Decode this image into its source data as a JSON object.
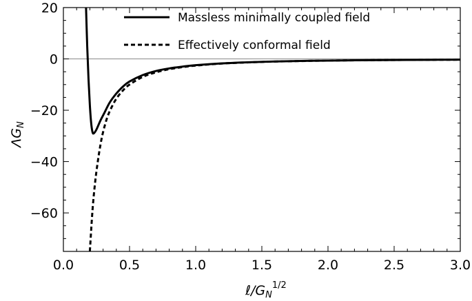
{
  "chart_data": {
    "type": "line",
    "xlabel_main": "ℓ/",
    "xlabel_g": "G",
    "xlabel_sub": "N",
    "xlabel_sup": "1/2",
    "ylabel_main": "ΛG",
    "ylabel_sub": "N",
    "xlim": [
      0,
      3
    ],
    "ylim": [
      -75,
      20
    ],
    "xticks": [
      0.0,
      0.5,
      1.0,
      1.5,
      2.0,
      2.5,
      3.0
    ],
    "xtick_labels": [
      "0.0",
      "0.5",
      "1.0",
      "1.5",
      "2.0",
      "2.5",
      "3.0"
    ],
    "yticks": [
      20,
      0,
      -20,
      -40,
      -60
    ],
    "ytick_labels": [
      "20",
      "0",
      "−20",
      "−40",
      "−60"
    ],
    "zero_line": true,
    "grid": false,
    "legend_position": "top-right",
    "series": [
      {
        "name": "Massless minimally coupled field",
        "style": "solid",
        "color": "#000000",
        "x": [
          0.17,
          0.18,
          0.19,
          0.2,
          0.21,
          0.22,
          0.23,
          0.25,
          0.28,
          0.31,
          0.35,
          0.4,
          0.45,
          0.5,
          0.6,
          0.7,
          0.8,
          0.9,
          1.0,
          1.2,
          1.4,
          1.6,
          1.8,
          2.0,
          2.3,
          2.6,
          3.0
        ],
        "y": [
          22,
          5,
          -8,
          -18,
          -25,
          -28.5,
          -29,
          -27.5,
          -24,
          -21,
          -17,
          -13.5,
          -10.8,
          -8.8,
          -6.3,
          -4.7,
          -3.7,
          -3.0,
          -2.45,
          -1.75,
          -1.3,
          -1.0,
          -0.8,
          -0.65,
          -0.5,
          -0.4,
          -0.3
        ]
      },
      {
        "name": "Effectively conformal field",
        "style": "dashed",
        "color": "#000000",
        "x": [
          0.2,
          0.22,
          0.24,
          0.26,
          0.28,
          0.3,
          0.33,
          0.36,
          0.4,
          0.45,
          0.5,
          0.6,
          0.7,
          0.8,
          0.9,
          1.0,
          1.2,
          1.4,
          1.6,
          1.8,
          2.0,
          2.3,
          2.6,
          3.0
        ],
        "y": [
          -75,
          -59,
          -48,
          -40,
          -33.5,
          -28.5,
          -23,
          -19.3,
          -15.5,
          -12.3,
          -10.0,
          -7.0,
          -5.2,
          -4.0,
          -3.2,
          -2.6,
          -1.8,
          -1.35,
          -1.03,
          -0.82,
          -0.66,
          -0.5,
          -0.4,
          -0.3
        ]
      }
    ]
  }
}
